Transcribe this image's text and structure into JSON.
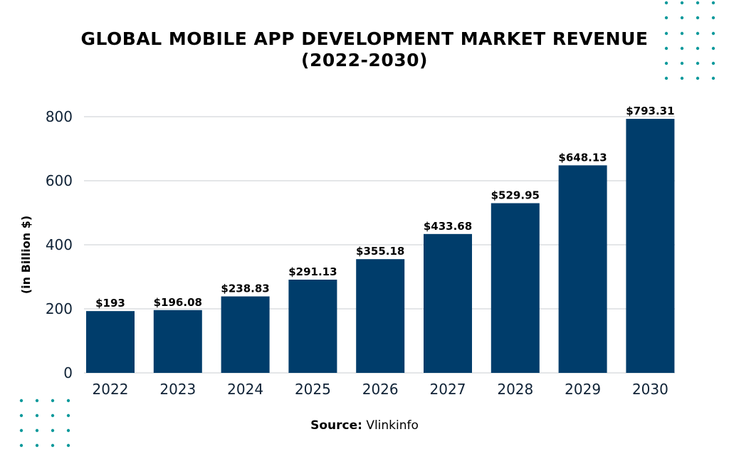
{
  "title_line1": "GLOBAL MOBILE APP DEVELOPMENT MARKET REVENUE",
  "title_line2": "(2022-2030)",
  "source_label": "Source:",
  "source_value": "Vlinkinfo",
  "colors": {
    "bar": "#003d6b",
    "grid": "#c8ccd0",
    "decor_dots": "#0e9a9c",
    "axis_text": "#0f2236"
  },
  "chart_data": {
    "type": "bar",
    "title": "GLOBAL MOBILE APP DEVELOPMENT MARKET REVENUE (2022-2030)",
    "xlabel": "",
    "ylabel": "(in Billion $)",
    "ylim": [
      0,
      800
    ],
    "yticks": [
      0,
      200,
      400,
      600,
      800
    ],
    "grid": true,
    "categories": [
      "2022",
      "2023",
      "2024",
      "2025",
      "2026",
      "2027",
      "2028",
      "2029",
      "2030"
    ],
    "values": [
      193,
      196.08,
      238.83,
      291.13,
      355.18,
      433.68,
      529.95,
      648.13,
      793.31
    ],
    "data_labels": [
      "$193",
      "$196.08",
      "$238.83",
      "$291.13",
      "$355.18",
      "$433.68",
      "$529.95",
      "$648.13",
      "$793.31"
    ]
  }
}
